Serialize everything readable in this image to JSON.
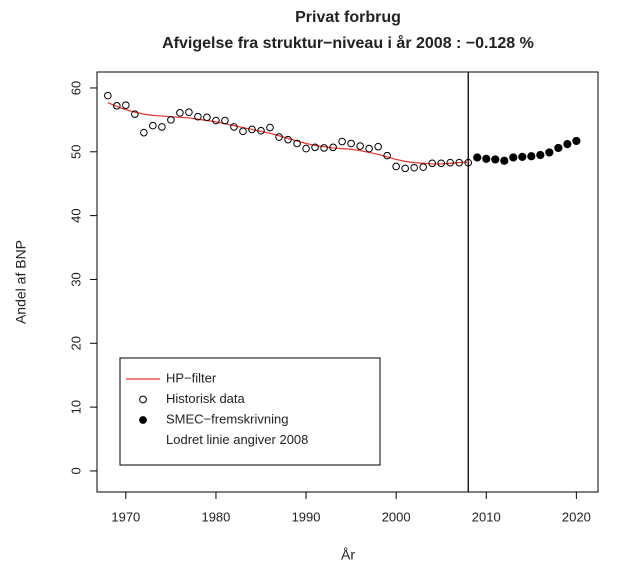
{
  "chart_data": {
    "type": "scatter",
    "title": "Privat forbrug",
    "subtitle": "Afvigelse fra struktur−niveau i år  2008 :  −0.128 %",
    "x_label": "År",
    "y_label": "Andel af BNP",
    "x": [
      1968,
      1969,
      1970,
      1971,
      1972,
      1973,
      1974,
      1975,
      1976,
      1977,
      1978,
      1979,
      1980,
      1981,
      1982,
      1983,
      1984,
      1985,
      1986,
      1987,
      1988,
      1989,
      1990,
      1991,
      1992,
      1993,
      1994,
      1995,
      1996,
      1997,
      1998,
      1999,
      2000,
      2001,
      2002,
      2003,
      2004,
      2005,
      2006,
      2007,
      2008,
      2009,
      2010,
      2011,
      2012,
      2013,
      2014,
      2015,
      2016,
      2017,
      2018,
      2019,
      2020
    ],
    "series": [
      {
        "name": "HP−filter",
        "color": "#e8312f",
        "marker": "line",
        "values": [
          57.7,
          57.1,
          56.6,
          56.2,
          55.9,
          55.7,
          55.6,
          55.5,
          55.4,
          55.3,
          55.1,
          54.9,
          54.7,
          54.4,
          54.1,
          53.8,
          53.5,
          53.2,
          52.9,
          52.5,
          52.1,
          51.7,
          51.3,
          51.0,
          50.8,
          50.6,
          50.5,
          50.4,
          50.2,
          49.9,
          49.6,
          49.2,
          48.8,
          48.5,
          48.3,
          48.2,
          48.1,
          48.1,
          48.2,
          48.3,
          48.4,
          null,
          null,
          null,
          null,
          null,
          null,
          null,
          null,
          null,
          null,
          null,
          null
        ]
      },
      {
        "name": "Historisk data",
        "color": "#000000",
        "marker": "open-circle",
        "values": [
          58.8,
          57.2,
          57.3,
          55.9,
          53.0,
          54.1,
          53.9,
          55.0,
          56.1,
          56.2,
          55.5,
          55.4,
          54.9,
          54.9,
          53.9,
          53.2,
          53.5,
          53.3,
          53.8,
          52.3,
          51.9,
          51.3,
          50.5,
          50.7,
          50.6,
          50.7,
          51.6,
          51.3,
          50.9,
          50.5,
          50.8,
          49.4,
          47.7,
          47.4,
          47.5,
          47.6,
          48.2,
          48.2,
          48.3,
          48.3,
          48.3,
          null,
          null,
          null,
          null,
          null,
          null,
          null,
          null,
          null,
          null,
          null,
          null
        ]
      },
      {
        "name": "SMEC−fremskrivning",
        "color": "#000000",
        "marker": "filled-circle",
        "values": [
          null,
          null,
          null,
          null,
          null,
          null,
          null,
          null,
          null,
          null,
          null,
          null,
          null,
          null,
          null,
          null,
          null,
          null,
          null,
          null,
          null,
          null,
          null,
          null,
          null,
          null,
          null,
          null,
          null,
          null,
          null,
          null,
          null,
          null,
          null,
          null,
          null,
          null,
          null,
          null,
          null,
          49.1,
          48.9,
          48.8,
          48.6,
          49.1,
          49.2,
          49.3,
          49.5,
          49.9,
          50.6,
          51.2,
          51.7
        ]
      }
    ],
    "legend_note": "Lodret linie angiver 2008",
    "vline": 2008,
    "xlim": [
      1966.8,
      2022.4
    ],
    "xticks": [
      1970,
      1980,
      1990,
      2000,
      2010,
      2020
    ],
    "ylim": [
      -3.3,
      62.5
    ],
    "yticks": [
      0,
      10,
      20,
      30,
      40,
      50,
      60
    ]
  }
}
